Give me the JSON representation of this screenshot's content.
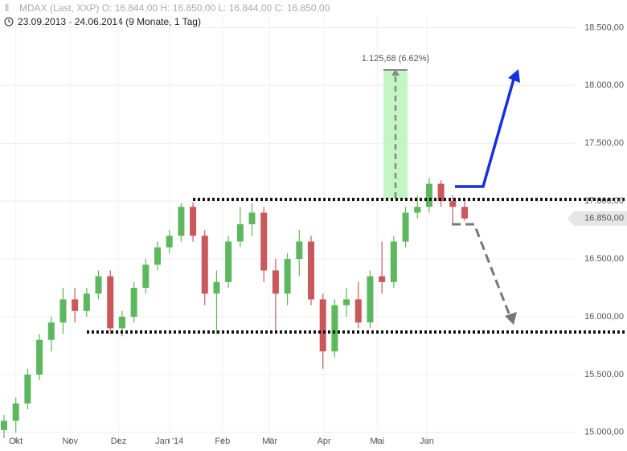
{
  "chart_data": {
    "type": "candlestick",
    "title": "MDAX (Last, XXP)  O: 16.844,00  H: 16.850,00  L: 16.844,00  C: 16.850,00",
    "subtitle": "23.09.2013 - 24.06.2014 (9 Monate, 1 Tag)",
    "annotation": "1.125,68 (6.62%)",
    "up_color": "#5cb85c",
    "down_color": "#c9575b",
    "ylim": [
      14950,
      18600
    ],
    "yticks": [
      {
        "value": 15000,
        "label": "15.000,00"
      },
      {
        "value": 15500,
        "label": "15.500,00"
      },
      {
        "value": 16000,
        "label": "16.000,00"
      },
      {
        "value": 16500,
        "label": "16.500,00"
      },
      {
        "value": 17000,
        "label": "17.000,00"
      },
      {
        "value": 17500,
        "label": "17.500,00"
      },
      {
        "value": 18000,
        "label": "18.000,00"
      },
      {
        "value": 18500,
        "label": "18.500,00"
      }
    ],
    "xlim": [
      0,
      39
    ],
    "xticks": [
      {
        "value": 1,
        "label": "Okt"
      },
      {
        "value": 5.6,
        "label": "Nov"
      },
      {
        "value": 9.7,
        "label": "Dez"
      },
      {
        "value": 14,
        "label": "Jan '14"
      },
      {
        "value": 18.5,
        "label": "Feb"
      },
      {
        "value": 22.5,
        "label": "Mär"
      },
      {
        "value": 27.1,
        "label": "Apr"
      },
      {
        "value": 31.6,
        "label": "Mai"
      },
      {
        "value": 35.8,
        "label": "Jun"
      }
    ],
    "last_value": {
      "value": 16850,
      "label": "16.850,00"
    },
    "grid": true,
    "open": [
      15020,
      15100,
      15250,
      15500,
      15800,
      15950,
      16150,
      16050,
      16200,
      16350,
      15900,
      16000,
      16250,
      16450,
      16600,
      16700,
      16950,
      16700,
      16200,
      16300,
      16650,
      16800,
      16900,
      16400,
      16200,
      16500,
      16650,
      16150,
      15700,
      16100,
      16150,
      15950,
      16350,
      16300,
      16650,
      16900,
      16950,
      17150,
      17000,
      16950
    ],
    "high": [
      15150,
      15300,
      15550,
      15850,
      16000,
      16250,
      16250,
      16250,
      16400,
      16400,
      16050,
      16300,
      16500,
      16650,
      16750,
      16980,
      16990,
      16750,
      16400,
      16700,
      16950,
      16980,
      16950,
      16500,
      16550,
      16750,
      16700,
      16200,
      16150,
      16250,
      16300,
      16400,
      16650,
      16700,
      16950,
      17050,
      17200,
      17180,
      17050,
      17000
    ],
    "low": [
      14950,
      15000,
      15200,
      15450,
      15700,
      15850,
      15950,
      16000,
      16150,
      15850,
      15830,
      15950,
      16200,
      16400,
      16550,
      16650,
      16650,
      16100,
      15850,
      16250,
      16600,
      16700,
      16300,
      15880,
      16100,
      16350,
      16100,
      15550,
      15650,
      16000,
      15900,
      15900,
      16200,
      16250,
      16600,
      16850,
      16900,
      16950,
      16800,
      16830
    ],
    "close": [
      15100,
      15250,
      15500,
      15800,
      15950,
      16150,
      16050,
      16200,
      16350,
      15900,
      16000,
      16250,
      16450,
      16600,
      16700,
      16950,
      16700,
      16200,
      16300,
      16650,
      16800,
      16900,
      16400,
      16200,
      16500,
      16650,
      16150,
      15700,
      16100,
      16150,
      15950,
      16350,
      16300,
      16650,
      16900,
      16950,
      17150,
      17000,
      16950,
      16850
    ]
  }
}
